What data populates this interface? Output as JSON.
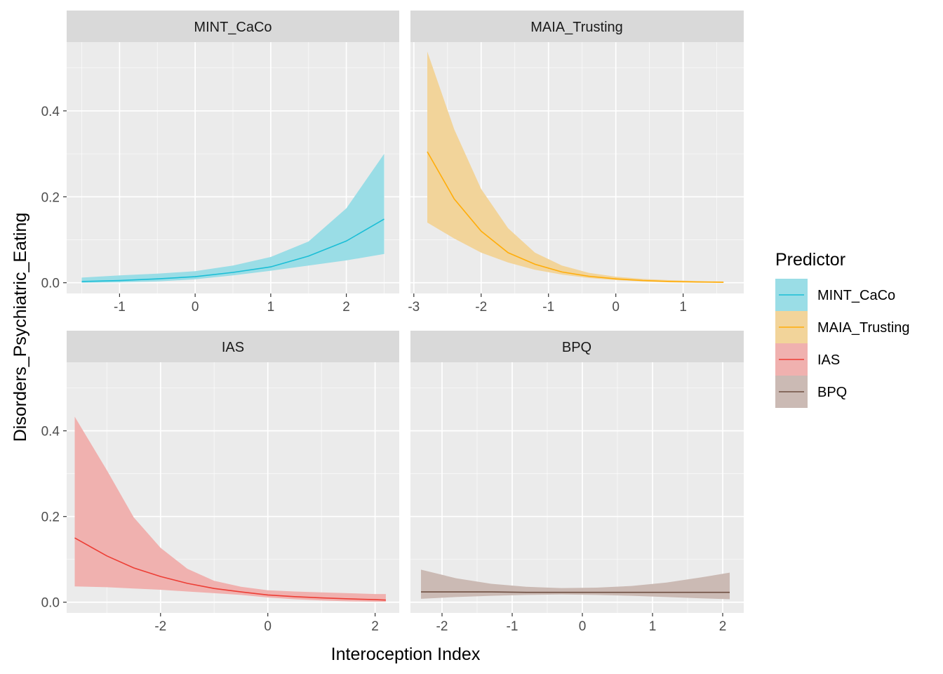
{
  "chart_data": {
    "type": "line",
    "xlabel": "Interoception Index",
    "ylabel": "Disorders_Psychiatric_Eating",
    "ylim": [
      -0.025,
      0.56
    ],
    "y_ticks": [
      0.0,
      0.2,
      0.4
    ],
    "y_tick_labels": [
      "0.0",
      "0.2",
      "0.4"
    ],
    "grid": true,
    "legend": {
      "title": "Predictor",
      "position": "right",
      "entries": [
        {
          "name": "MINT_CaCo",
          "color": "#1BBED6"
        },
        {
          "name": "MAIA_Trusting",
          "color": "#FFAD0A"
        },
        {
          "name": "IAS",
          "color": "#ED3E35"
        },
        {
          "name": "BPQ",
          "color": "#6F4F42"
        }
      ]
    },
    "panels": [
      {
        "strip": "MINT_CaCo",
        "color": "#1BBED6",
        "band_color": "#9ADDE6",
        "xlim": [
          -1.7,
          2.7
        ],
        "x_ticks": [
          -1,
          0,
          1,
          2
        ],
        "x_tick_labels": [
          "-1",
          "0",
          "1",
          "2"
        ],
        "series": {
          "x": [
            -1.5,
            -1.0,
            -0.5,
            0.0,
            0.5,
            1.0,
            1.5,
            2.0,
            2.5
          ],
          "y": [
            0.003,
            0.005,
            0.009,
            0.014,
            0.024,
            0.037,
            0.062,
            0.097,
            0.148
          ],
          "lower": [
            0.0,
            0.001,
            0.003,
            0.008,
            0.017,
            0.028,
            0.04,
            0.052,
            0.067
          ],
          "upper": [
            0.012,
            0.017,
            0.021,
            0.027,
            0.04,
            0.06,
            0.096,
            0.173,
            0.3
          ]
        }
      },
      {
        "strip": "MAIA_Trusting",
        "color": "#FFAD0A",
        "band_color": "#F2D49A",
        "xlim": [
          -3.05,
          1.9
        ],
        "x_ticks": [
          -3,
          -2,
          -1,
          0,
          1
        ],
        "x_tick_labels": [
          "-3",
          "-2",
          "-1",
          "0",
          "1"
        ],
        "series": {
          "x": [
            -2.8,
            -2.4,
            -2.0,
            -1.6,
            -1.2,
            -0.8,
            -0.4,
            0.0,
            0.4,
            0.8,
            1.2,
            1.6
          ],
          "y": [
            0.305,
            0.195,
            0.12,
            0.07,
            0.043,
            0.025,
            0.015,
            0.009,
            0.005,
            0.003,
            0.002,
            0.001
          ],
          "lower": [
            0.14,
            0.103,
            0.07,
            0.047,
            0.03,
            0.019,
            0.011,
            0.006,
            0.003,
            0.001,
            0.0,
            0.0
          ],
          "upper": [
            0.538,
            0.357,
            0.218,
            0.127,
            0.07,
            0.04,
            0.023,
            0.014,
            0.009,
            0.006,
            0.004,
            0.003
          ]
        }
      },
      {
        "strip": "IAS",
        "color": "#ED3E35",
        "band_color": "#F0B1AF",
        "xlim": [
          -3.75,
          2.45
        ],
        "x_ticks": [
          -2,
          0,
          2
        ],
        "x_tick_labels": [
          "-2",
          "0",
          "2"
        ],
        "series": {
          "x": [
            -3.6,
            -3.0,
            -2.5,
            -2.0,
            -1.5,
            -1.0,
            -0.5,
            0.0,
            0.5,
            1.0,
            1.5,
            2.0,
            2.2
          ],
          "y": [
            0.15,
            0.108,
            0.08,
            0.06,
            0.044,
            0.032,
            0.024,
            0.017,
            0.013,
            0.01,
            0.008,
            0.006,
            0.005
          ],
          "lower": [
            0.037,
            0.035,
            0.032,
            0.029,
            0.025,
            0.021,
            0.017,
            0.011,
            0.007,
            0.004,
            0.002,
            0.001,
            0.001
          ],
          "upper": [
            0.433,
            0.308,
            0.198,
            0.127,
            0.078,
            0.05,
            0.036,
            0.028,
            0.025,
            0.023,
            0.021,
            0.019,
            0.019
          ]
        }
      },
      {
        "strip": "BPQ",
        "color": "#6F4F42",
        "band_color": "#CBBAB4",
        "xlim": [
          -2.45,
          2.3
        ],
        "x_ticks": [
          -2,
          -1,
          0,
          1,
          2
        ],
        "x_tick_labels": [
          "-2",
          "-1",
          "0",
          "1",
          "2"
        ],
        "series": {
          "x": [
            -2.3,
            -1.8,
            -1.3,
            -0.8,
            -0.3,
            0.2,
            0.7,
            1.2,
            1.7,
            2.1
          ],
          "y": [
            0.024,
            0.024,
            0.024,
            0.023,
            0.023,
            0.023,
            0.023,
            0.023,
            0.023,
            0.023
          ],
          "lower": [
            0.008,
            0.012,
            0.015,
            0.017,
            0.018,
            0.017,
            0.015,
            0.012,
            0.009,
            0.007
          ],
          "upper": [
            0.076,
            0.056,
            0.043,
            0.036,
            0.033,
            0.034,
            0.038,
            0.046,
            0.058,
            0.069
          ]
        }
      }
    ]
  }
}
